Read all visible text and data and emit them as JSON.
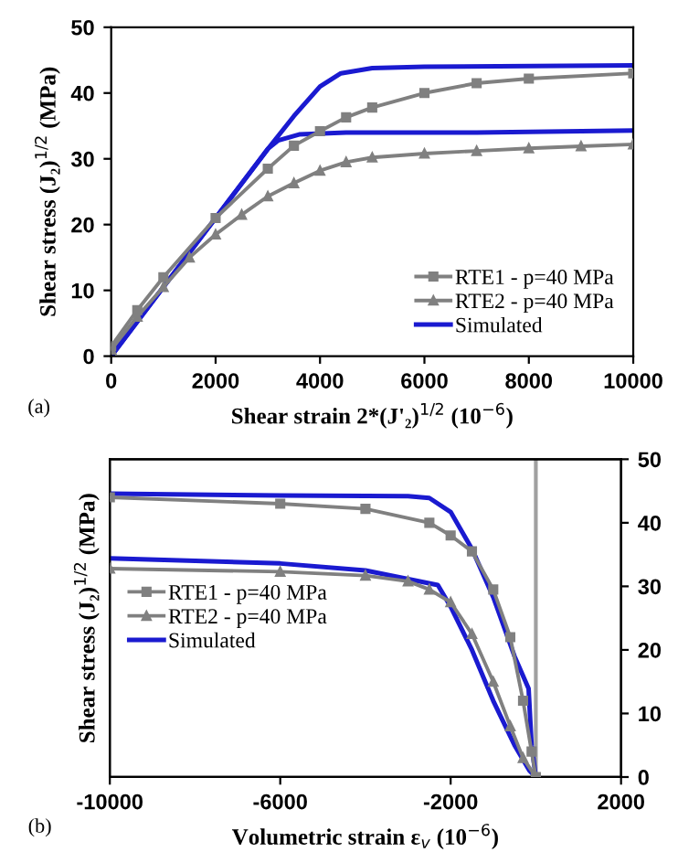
{
  "chart_data": [
    {
      "type": "line",
      "xlabel": "Shear strain 2*(J'₂)$^{1/2}$ (10$^{−6}$)",
      "ylabel": "Shear stress (J₂)$^{1/2}$ (MPa)",
      "annotations": [
        "(a)"
      ],
      "xlim": [
        0,
        10000
      ],
      "xticks": [
        0,
        2000,
        4000,
        6000,
        8000,
        10000
      ],
      "ylim": [
        0,
        50
      ],
      "yticks": [
        0,
        10,
        20,
        30,
        40,
        50
      ],
      "grid": false,
      "legend": "bottom right",
      "series": [
        {
          "name": "RTE1 - p=40 MPa",
          "color": "#808080",
          "marker": "square",
          "x": [
            0,
            500,
            1000,
            2000,
            3000,
            3500,
            4000,
            4500,
            5000,
            6000,
            7000,
            8000,
            10000
          ],
          "values": [
            1.5,
            7,
            12,
            21,
            28.5,
            32,
            34.2,
            36.3,
            37.8,
            40,
            41.5,
            42.2,
            43
          ]
        },
        {
          "name": "RTE2 - p=40 MPa",
          "color": "#808080",
          "marker": "triangle",
          "x": [
            0,
            500,
            1000,
            1500,
            2000,
            2500,
            3000,
            3500,
            4000,
            4500,
            5000,
            6000,
            7000,
            8000,
            9000,
            10000
          ],
          "values": [
            1,
            6,
            10.5,
            15,
            18.5,
            21.5,
            24.3,
            26.3,
            28.2,
            29.5,
            30.2,
            30.8,
            31.2,
            31.6,
            31.9,
            32.2
          ]
        },
        {
          "name": "Simulated",
          "color": "#1a1ad0",
          "marker": "none",
          "x": [
            0,
            1000,
            2000,
            3000,
            3500,
            4000,
            4400,
            5000,
            6000,
            10000
          ],
          "values": [
            0,
            10.5,
            21,
            31.5,
            36.5,
            41,
            43,
            43.8,
            44,
            44.2
          ]
        },
        {
          "color": "#1a1ad0",
          "marker": "none",
          "x": [
            0,
            1000,
            2000,
            3000,
            3200,
            3600,
            4500,
            7000,
            10000
          ],
          "values": [
            0,
            10.5,
            21,
            31.5,
            32.8,
            33.7,
            34,
            34,
            34.3
          ]
        }
      ]
    },
    {
      "type": "line",
      "xlabel": "Volumetric strain ε$_{v}$ (10$^{−6}$)",
      "ylabel": "Shear stress (J₂)$^{1/2}$ (MPa)",
      "annotations": [
        "(b)"
      ],
      "xlim": [
        -10000,
        2000
      ],
      "xticks": [
        -10000,
        -6000,
        -2000,
        2000
      ],
      "y2lim": [
        0,
        50
      ],
      "y2ticks": [
        0,
        10,
        20,
        30,
        40,
        50
      ],
      "grid": false,
      "legend": "left",
      "ref_lines": [
        {
          "axis": "x",
          "value": 0,
          "color": "#a0a0a0"
        }
      ],
      "series": [
        {
          "name": "RTE1 - p=40 MPa",
          "color": "#808080",
          "marker": "square",
          "axis": "y2",
          "x": [
            -10000,
            -6000,
            -4000,
            -2500,
            -2000,
            -1500,
            -1000,
            -600,
            -300,
            -100,
            0
          ],
          "values": [
            44,
            43,
            42.2,
            40,
            38,
            35.5,
            29.5,
            22,
            12,
            4,
            0
          ]
        },
        {
          "name": "RTE2 - p=40 MPa",
          "color": "#808080",
          "marker": "triangle",
          "axis": "y2",
          "x": [
            -10000,
            -6000,
            -4000,
            -3000,
            -2500,
            -2000,
            -1500,
            -1000,
            -600,
            -300,
            0
          ],
          "values": [
            32.8,
            32.3,
            31.7,
            30.8,
            29.5,
            27.5,
            22.5,
            15,
            8,
            3,
            0
          ]
        },
        {
          "name": "Simulated",
          "color": "#1a1ad0",
          "marker": "none",
          "axis": "y2",
          "x": [
            -10000,
            -6000,
            -3000,
            -2500,
            -2000,
            -1500,
            -1000,
            -500,
            -170,
            -100,
            0
          ],
          "values": [
            44.6,
            44.3,
            44.2,
            43.9,
            41.7,
            35.9,
            28.3,
            19,
            13.9,
            5,
            0
          ]
        },
        {
          "color": "#1a1ad0",
          "marker": "none",
          "axis": "y2",
          "x": [
            -10000,
            -6000,
            -4000,
            -2300,
            -2000,
            -1500,
            -1000,
            -500,
            -150,
            0
          ],
          "values": [
            34.4,
            33.6,
            32.5,
            30.2,
            26.8,
            20,
            12,
            5,
            1,
            0
          ]
        }
      ]
    }
  ]
}
